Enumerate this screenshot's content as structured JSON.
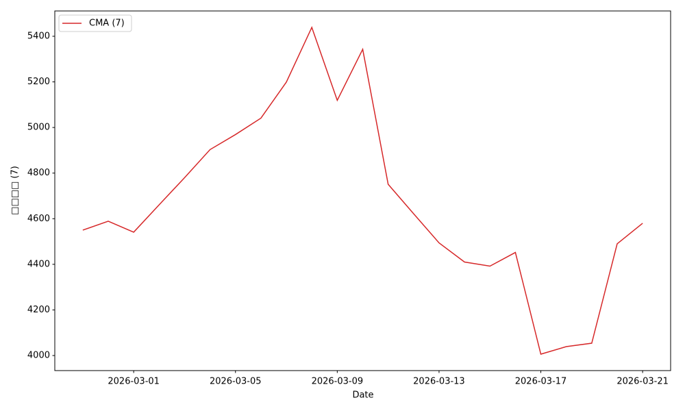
{
  "chart_data": {
    "type": "line",
    "x": [
      "2026-02-27",
      "2026-02-28",
      "2026-03-01",
      "2026-03-02",
      "2026-03-03",
      "2026-03-04",
      "2026-03-05",
      "2026-03-06",
      "2026-03-07",
      "2026-03-08",
      "2026-03-09",
      "2026-03-10",
      "2026-03-11",
      "2026-03-12",
      "2026-03-13",
      "2026-03-14",
      "2026-03-15",
      "2026-03-16",
      "2026-03-17",
      "2026-03-18",
      "2026-03-19",
      "2026-03-20",
      "2026-03-21"
    ],
    "series": [
      {
        "name": "CMA (7)",
        "color": "#d62728",
        "values": [
          4550,
          4589,
          4541,
          4661,
          4780,
          4903,
          4969,
          5041,
          5199,
          5439,
          5119,
          5343,
          4751,
          4622,
          4494,
          4410,
          4392,
          4452,
          4006,
          4039,
          4054,
          4490,
          4580
        ]
      }
    ],
    "xlabel": "Date",
    "ylabel": "□□□□ (7)",
    "xlim": [
      "2026-02-25T21:36",
      "2026-03-22T02:24"
    ],
    "xticks": [
      "2026-03-01",
      "2026-03-05",
      "2026-03-09",
      "2026-03-13",
      "2026-03-17",
      "2026-03-21"
    ],
    "ylim": [
      3934,
      5511
    ],
    "yticks": [
      4000,
      4200,
      4400,
      4600,
      4800,
      5000,
      5200,
      5400
    ],
    "legend": "upper-left",
    "grid": false
  }
}
